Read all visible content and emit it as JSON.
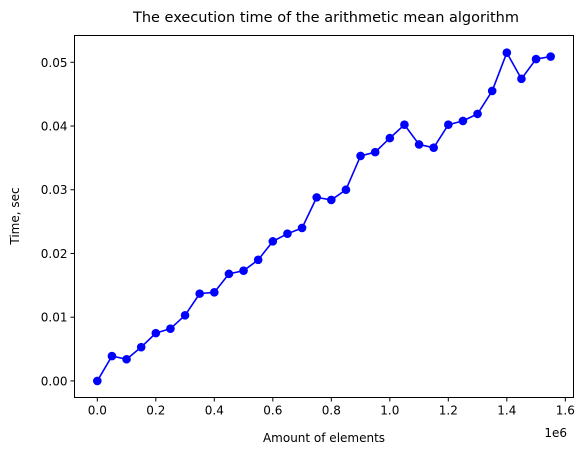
{
  "chart_data": {
    "type": "line",
    "title": "The execution time of the arithmetic mean algorithm",
    "xlabel": "Amount of elements",
    "ylabel": "Time, sec",
    "x_offset_text": "1e6",
    "xlim": [
      -0.078,
      1.628
    ],
    "ylim": [
      -0.0026,
      0.0542
    ],
    "x_ticks": [
      0.0,
      0.2,
      0.4,
      0.6,
      0.8,
      1.0,
      1.2,
      1.4,
      1.6
    ],
    "x_tick_labels": [
      "0.0",
      "0.2",
      "0.4",
      "0.6",
      "0.8",
      "1.0",
      "1.2",
      "1.4",
      "1.6"
    ],
    "y_ticks": [
      0.0,
      0.01,
      0.02,
      0.03,
      0.04,
      0.05
    ],
    "y_tick_labels": [
      "0.00",
      "0.01",
      "0.02",
      "0.03",
      "0.04",
      "0.05"
    ],
    "grid": false,
    "legend": "none",
    "series": [
      {
        "color": "#0000ff",
        "marker": "circle",
        "x": [
          0.0,
          0.05,
          0.1,
          0.15,
          0.2,
          0.25,
          0.3,
          0.35,
          0.4,
          0.45,
          0.5,
          0.55,
          0.6,
          0.65,
          0.7,
          0.75,
          0.8,
          0.85,
          0.9,
          0.95,
          1.0,
          1.05,
          1.1,
          1.15,
          1.2,
          1.25,
          1.3,
          1.35,
          1.4,
          1.45,
          1.5,
          1.55
        ],
        "y": [
          0.0,
          0.0039,
          0.0034,
          0.0053,
          0.0075,
          0.0082,
          0.0103,
          0.0137,
          0.0139,
          0.0168,
          0.0173,
          0.019,
          0.0219,
          0.0231,
          0.024,
          0.0288,
          0.0284,
          0.03,
          0.0353,
          0.0359,
          0.0381,
          0.0402,
          0.0371,
          0.0366,
          0.0402,
          0.0408,
          0.0419,
          0.0455,
          0.0515,
          0.0474,
          0.0505,
          0.0509
        ]
      }
    ]
  }
}
